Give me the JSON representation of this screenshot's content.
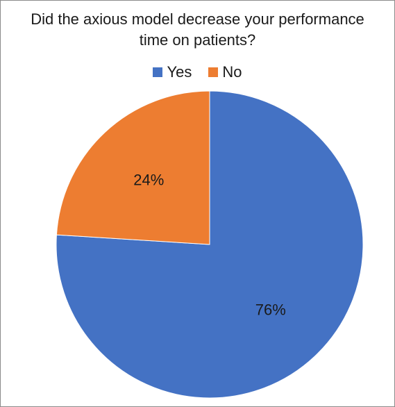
{
  "chart_data": {
    "type": "pie",
    "title_lines": [
      "Did the axious model decrease your performance",
      "time on patients?"
    ],
    "categories": [
      "Yes",
      "No"
    ],
    "values": [
      76,
      24
    ],
    "value_labels": [
      "76%",
      "24%"
    ],
    "colors": [
      "#4472C4",
      "#ED7D31"
    ],
    "legend_position": "top"
  }
}
